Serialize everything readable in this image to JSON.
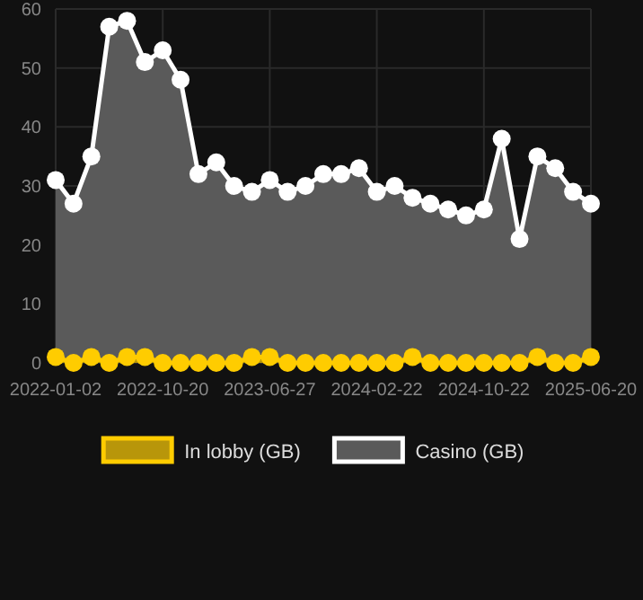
{
  "chart_data": {
    "type": "area",
    "categories": [
      "2022-01-02",
      null,
      null,
      null,
      null,
      null,
      "2022-10-20",
      null,
      null,
      null,
      null,
      null,
      "2023-06-27",
      null,
      null,
      null,
      null,
      null,
      "2024-02-22",
      null,
      null,
      null,
      null,
      null,
      "2024-10-22",
      null,
      null,
      null,
      null,
      null,
      "2025-06-20"
    ],
    "series": [
      {
        "name": "In lobby (GB)",
        "color": "#ffcc00",
        "values": [
          1,
          0,
          1,
          0,
          1,
          1,
          0,
          0,
          0,
          0,
          0,
          1,
          1,
          0,
          0,
          0,
          0,
          0,
          0,
          0,
          1,
          0,
          0,
          0,
          0,
          0,
          0,
          1,
          0,
          0,
          1
        ]
      },
      {
        "name": "Casino (GB)",
        "color": "#ffffff",
        "values": [
          31,
          27,
          35,
          57,
          58,
          51,
          53,
          48,
          32,
          34,
          30,
          29,
          31,
          29,
          30,
          32,
          32,
          33,
          29,
          30,
          28,
          27,
          26,
          25,
          26,
          38,
          21,
          35,
          33,
          29,
          27
        ]
      }
    ],
    "ylim": [
      0,
      60
    ],
    "yticks": [
      0,
      10,
      20,
      30,
      40,
      50,
      60
    ],
    "grid": true,
    "legend": "bottom",
    "marker": "circle"
  }
}
